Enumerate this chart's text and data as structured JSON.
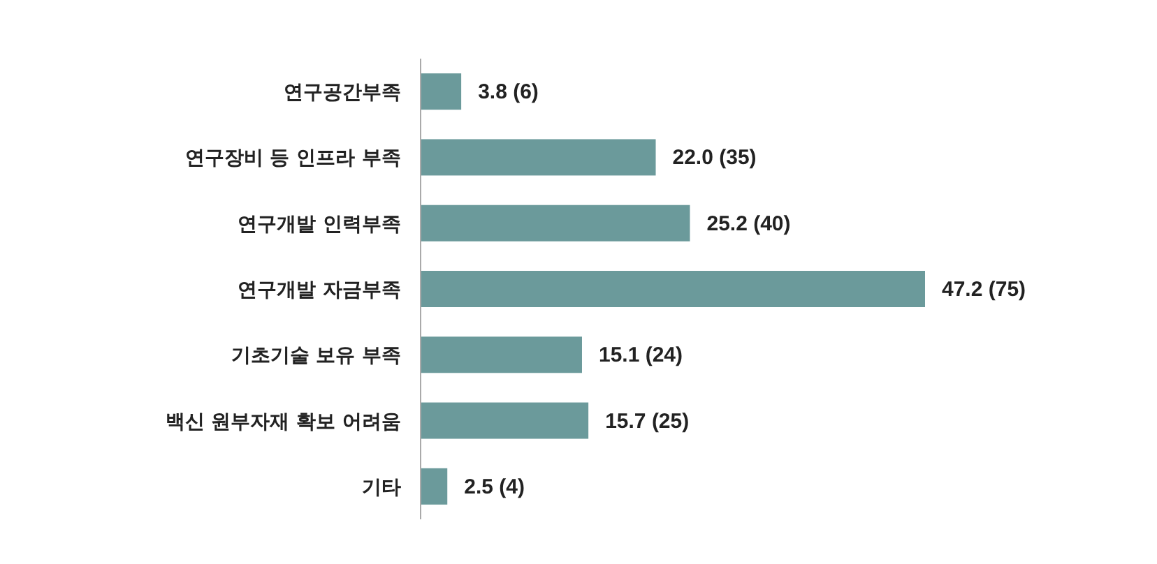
{
  "chart_data": {
    "type": "bar",
    "orientation": "horizontal",
    "color": "#6b9a9b",
    "categories": [
      "연구공간부족",
      "연구장비 등 인프라 부족",
      "연구개발 인력부족",
      "연구개발 자금부족",
      "기초기술 보유 부족",
      "백신 원부자재 확보 어려움",
      "기타"
    ],
    "values": [
      3.8,
      22.0,
      25.2,
      47.2,
      15.1,
      15.7,
      2.5
    ],
    "value_labels": [
      "3.8 (6)",
      "22.0 (35)",
      "25.2 (40)",
      "47.2 (75)",
      "15.1 (24)",
      "15.7 (25)",
      "2.5 (4)"
    ]
  }
}
